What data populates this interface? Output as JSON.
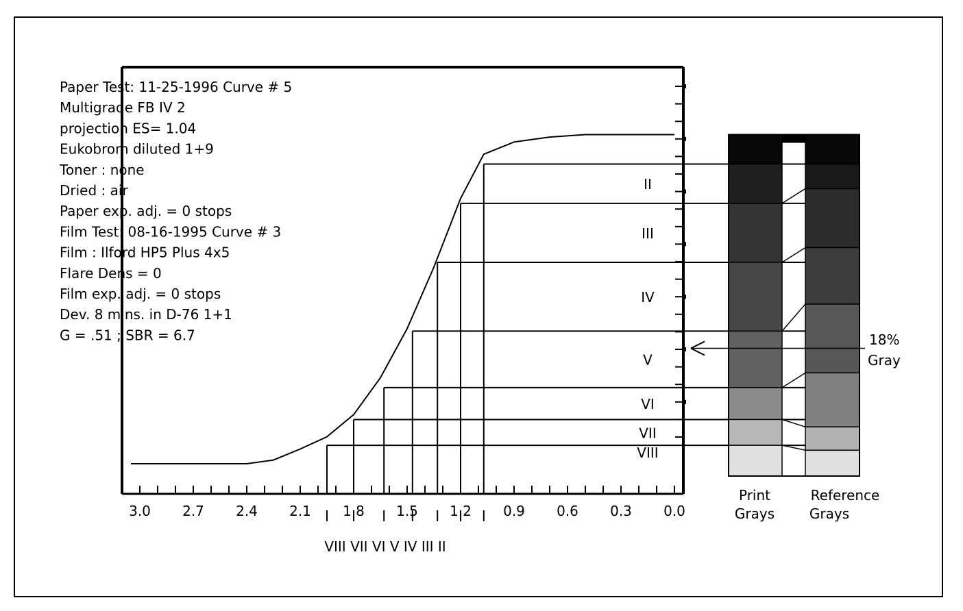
{
  "info": [
    "Paper Test: 11-25-1996     Curve # 5",
    "Multigrade FB IV 2",
    "projection  ES= 1.04",
    "Eukobrom diluted 1+9",
    "Toner : none",
    "Dried : air",
    "Paper exp. adj. =  0  stops",
    "Film Test:  08-16-1995   Curve # 3",
    "Film :  Ilford HP5 Plus 4x5",
    "Flare Dens =  0",
    "Film exp. adj. =  0  stops",
    "Dev. 8 mins. in D-76 1+1",
    "G =  .51  ; SBR = 6.7"
  ],
  "gray_labels": {
    "print": [
      "Print",
      "Grays"
    ],
    "reference": [
      "Reference",
      "Grays"
    ],
    "annotation": [
      "18%",
      "Gray"
    ]
  },
  "colors": {
    "ink": "#000000",
    "paper": "#ffffff"
  },
  "chart_data": {
    "type": "line",
    "title": "",
    "xlabel": "",
    "ylabel": "",
    "xlim": [
      3.1,
      -0.05
    ],
    "x_reversed": true,
    "ylim": [
      0,
      14
    ],
    "x_ticks": [
      "3.0",
      "2.7",
      "2.4",
      "2.1",
      "1.8",
      "1.5",
      "1.2",
      "0.9",
      "0.6",
      "0.3",
      "0.0"
    ],
    "x_tick_values": [
      3.0,
      2.7,
      2.4,
      2.1,
      1.8,
      1.5,
      1.2,
      0.9,
      0.6,
      0.3,
      0.0
    ],
    "series": [
      {
        "x": [
          3.05,
          2.4,
          2.25,
          2.1,
          1.95,
          1.8,
          1.65,
          1.5,
          1.35,
          1.2,
          1.07,
          0.9,
          0.7,
          0.5,
          0.3,
          0.0
        ],
        "y": [
          0.0,
          0.0,
          0.15,
          0.6,
          1.1,
          2.0,
          3.5,
          5.5,
          8.0,
          10.8,
          12.6,
          13.1,
          13.3,
          13.4,
          13.4,
          13.4
        ]
      }
    ],
    "zones": [
      {
        "label": "II",
        "x": 1.07,
        "y": 12.2
      },
      {
        "label": "III",
        "x": 1.2,
        "y": 10.6
      },
      {
        "label": "IV",
        "x": 1.33,
        "y": 8.2
      },
      {
        "label": "V",
        "x": 1.47,
        "y": 5.4
      },
      {
        "label": "VI",
        "x": 1.63,
        "y": 3.1
      },
      {
        "label": "VII",
        "x": 1.8,
        "y": 1.8
      },
      {
        "label": "VIII",
        "x": 1.95,
        "y": 0.75
      }
    ],
    "zone_bottom_labels": "VIII VII VI  V  IV  III  II",
    "gray_bands": [
      {
        "y": [
          12.2,
          13.4
        ],
        "tone": 0.97
      },
      {
        "y": [
          10.6,
          12.2
        ],
        "tone": 0.88
      },
      {
        "y": [
          8.2,
          10.6
        ],
        "tone": 0.8
      },
      {
        "y": [
          5.4,
          8.2
        ],
        "tone": 0.72
      },
      {
        "y": [
          3.1,
          5.4
        ],
        "tone": 0.62
      },
      {
        "y": [
          1.8,
          3.1
        ],
        "tone": 0.45
      },
      {
        "y": [
          0.75,
          1.8
        ],
        "tone": 0.28
      },
      {
        "y": [
          0.0,
          0.75
        ],
        "tone": 0.12
      }
    ],
    "reference_bands": [
      {
        "y": [
          12.2,
          13.4
        ],
        "tone": 0.97
      },
      {
        "y": [
          11.2,
          12.2
        ],
        "tone": 0.9
      },
      {
        "y": [
          8.8,
          11.2
        ],
        "tone": 0.83
      },
      {
        "y": [
          6.5,
          8.8
        ],
        "tone": 0.76
      },
      {
        "y": [
          3.7,
          6.5
        ],
        "tone": 0.66
      },
      {
        "y": [
          1.5,
          3.7
        ],
        "tone": 0.5
      },
      {
        "y": [
          0.55,
          1.5
        ],
        "tone": 0.3
      },
      {
        "y": [
          0.0,
          0.55
        ],
        "tone": 0.12
      }
    ],
    "gray_18_y": 4.7
  }
}
